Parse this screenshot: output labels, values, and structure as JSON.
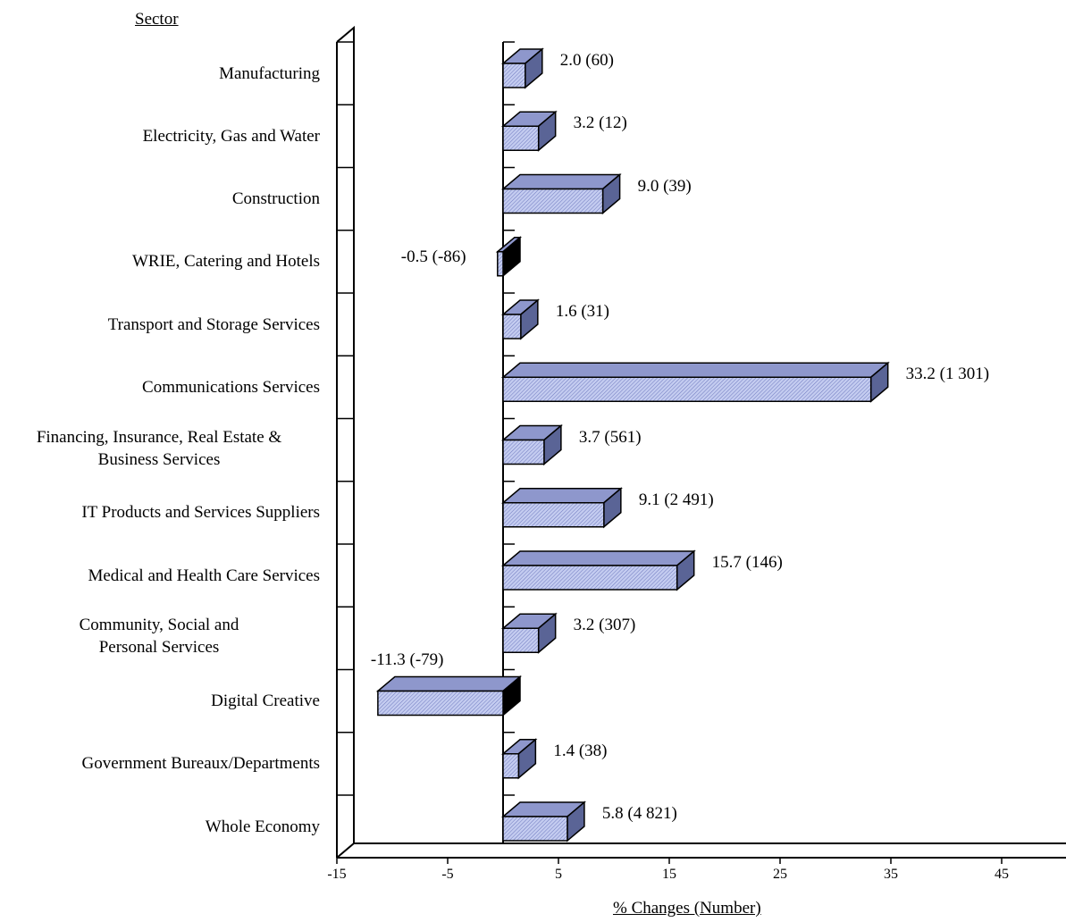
{
  "chart_data": {
    "type": "bar",
    "orientation": "horizontal",
    "style": "3d",
    "ylabel": "Sector",
    "xlabel": "% Changes (Number)",
    "xlim": [
      -15,
      50
    ],
    "xticks": [
      -15,
      -5,
      5,
      15,
      25,
      35,
      45
    ],
    "grid": false,
    "categories": [
      "Manufacturing",
      "Electricity, Gas and Water",
      "Construction",
      "WRIE, Catering and Hotels",
      "Transport and Storage Services",
      "Communications Services",
      "Financing, Insurance, Real Estate &\nBusiness Services",
      "IT Products and Services Suppliers",
      "Medical and Health Care Services",
      "Community, Social and\nPersonal Services",
      "Digital Creative",
      "Government Bureaux/Departments",
      "Whole Economy"
    ],
    "values": [
      2.0,
      3.2,
      9.0,
      -0.5,
      1.6,
      33.2,
      3.7,
      9.1,
      15.7,
      3.2,
      -11.3,
      1.4,
      5.8
    ],
    "data_labels": [
      "2.0 (60)",
      "3.2 (12)",
      "9.0 (39)",
      "-0.5 (-86)",
      "1.6 (31)",
      "33.2 (1 301)",
      "3.7 (561)",
      "9.1 (2 491)",
      "15.7 (146)",
      "3.2 (307)",
      "-11.3 (-79)",
      "1.4 (38)",
      "5.8 (4 821)"
    ],
    "colors": {
      "bar_front": "#c4ccf0",
      "bar_top": "#8e97cc",
      "bar_side_pos": "#5a6496",
      "bar_side_neg": "#000000",
      "hatch": "#6f7abf"
    }
  }
}
